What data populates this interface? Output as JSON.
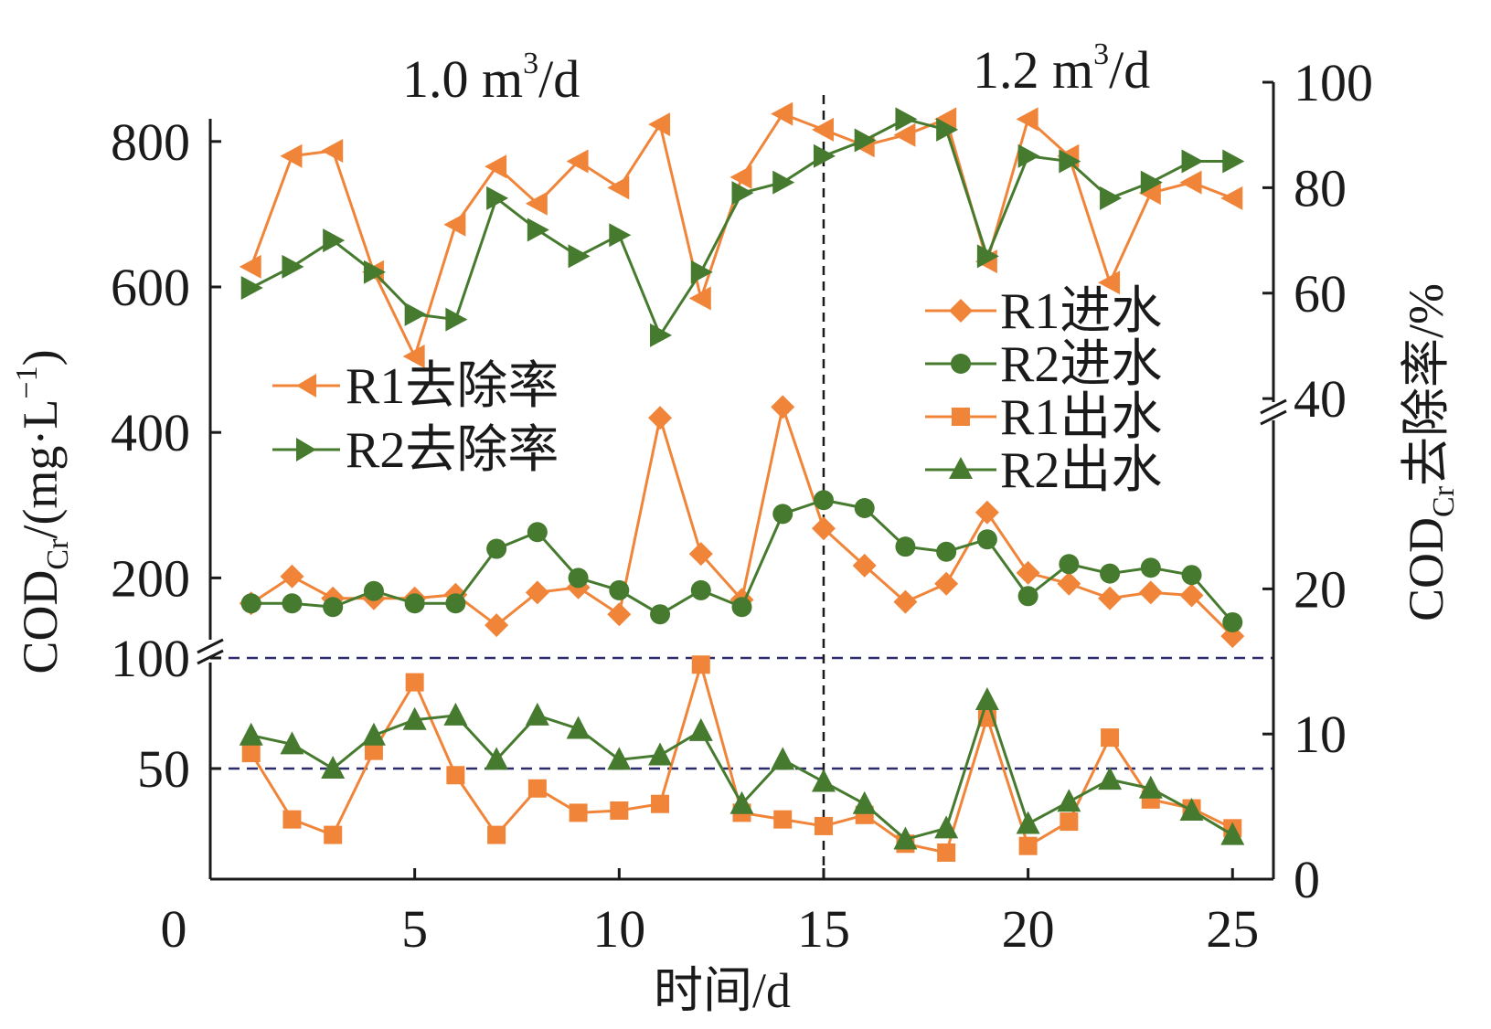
{
  "chart_data": {
    "type": "line",
    "xlabel": "时间/d",
    "x_ticks": [
      "0",
      "5",
      "10",
      "15",
      "20",
      "25"
    ],
    "xlim": [
      0,
      26
    ],
    "x": [
      1,
      2,
      3,
      4,
      5,
      6,
      7,
      8,
      9,
      10,
      11,
      12,
      13,
      14,
      15,
      16,
      17,
      18,
      19,
      20,
      21,
      22,
      23,
      24,
      25
    ],
    "left_axis": {
      "label_main": "COD",
      "label_sub": "Cr",
      "label_tail": "/(mg·L",
      "label_sup": "−1",
      "label_close": ")",
      "upper_ticks": [
        "200",
        "400",
        "600",
        "800"
      ],
      "lower_ticks": [
        "50",
        "100"
      ],
      "upper_range": [
        100,
        850
      ],
      "lower_range": [
        0,
        100
      ]
    },
    "right_axis": {
      "label_main": "COD",
      "label_sub": "Cr",
      "label_tail": "去除率/%",
      "upper_ticks": [
        "40",
        "60",
        "80",
        "100"
      ],
      "lower_ticks": [
        "0",
        "10",
        "20"
      ],
      "upper_range": [
        35,
        100
      ],
      "lower_range": [
        0,
        25
      ]
    },
    "regimes": [
      {
        "base": "1.0 m",
        "sup": "3",
        "tail": "/d"
      },
      {
        "base": "1.2 m",
        "sup": "3",
        "tail": "/d"
      }
    ],
    "regime_split_x": 15,
    "threshold_lines": [
      50,
      100
    ],
    "colors": {
      "orange": "#f0853a",
      "green": "#467a2e",
      "threshold": "#2b2b6b"
    },
    "series": [
      {
        "name": "R1去除率",
        "axis": "right",
        "marker": "tri-left",
        "color": "#f0853a",
        "values": [
          65,
          86,
          87,
          64,
          48,
          73,
          84,
          77,
          85,
          80,
          92,
          59,
          82,
          94,
          91,
          88,
          90,
          93,
          66,
          93,
          86,
          62,
          79,
          81,
          78
        ]
      },
      {
        "name": "R2去除率",
        "axis": "right",
        "marker": "tri-right",
        "color": "#467a2e",
        "values": [
          61,
          65,
          70,
          64,
          56,
          55,
          78,
          72,
          67,
          71,
          52,
          64,
          79,
          81,
          86,
          89,
          93,
          91,
          67,
          86,
          85,
          78,
          81,
          85,
          85
        ]
      },
      {
        "name": "R1进水",
        "axis": "left",
        "marker": "diamond",
        "color": "#f0853a",
        "values": [
          165,
          202,
          172,
          172,
          172,
          177,
          135,
          180,
          187,
          150,
          420,
          233,
          170,
          435,
          268,
          217,
          167,
          192,
          290,
          207,
          192,
          172,
          180,
          176,
          120
        ]
      },
      {
        "name": "R2进水",
        "axis": "left",
        "marker": "circle",
        "color": "#467a2e",
        "values": [
          165,
          165,
          160,
          182,
          165,
          165,
          240,
          263,
          200,
          183,
          150,
          183,
          160,
          288,
          307,
          296,
          243,
          236,
          253,
          175,
          219,
          206,
          214,
          204,
          139
        ]
      },
      {
        "name": "R1出水",
        "axis": "left",
        "marker": "square",
        "color": "#f0853a",
        "values": [
          57,
          27,
          20,
          58,
          89,
          47,
          20,
          41,
          30,
          31,
          34,
          97,
          30,
          27,
          24,
          29,
          16,
          12,
          73,
          15,
          26,
          64,
          36,
          32,
          23
        ]
      },
      {
        "name": "R2出水",
        "axis": "left",
        "marker": "triangle",
        "color": "#467a2e",
        "values": [
          65,
          61,
          50,
          65,
          72,
          74,
          54,
          74,
          68,
          54,
          56,
          67,
          34,
          54,
          44,
          34,
          18,
          23,
          81,
          25,
          35,
          45,
          41,
          31,
          20
        ]
      }
    ],
    "legends": [
      {
        "placement": "center-left",
        "items": [
          "R1去除率",
          "R2去除率"
        ]
      },
      {
        "placement": "top-right",
        "items": [
          "R1进水",
          "R2进水",
          "R1出水",
          "R2出水"
        ]
      }
    ]
  }
}
